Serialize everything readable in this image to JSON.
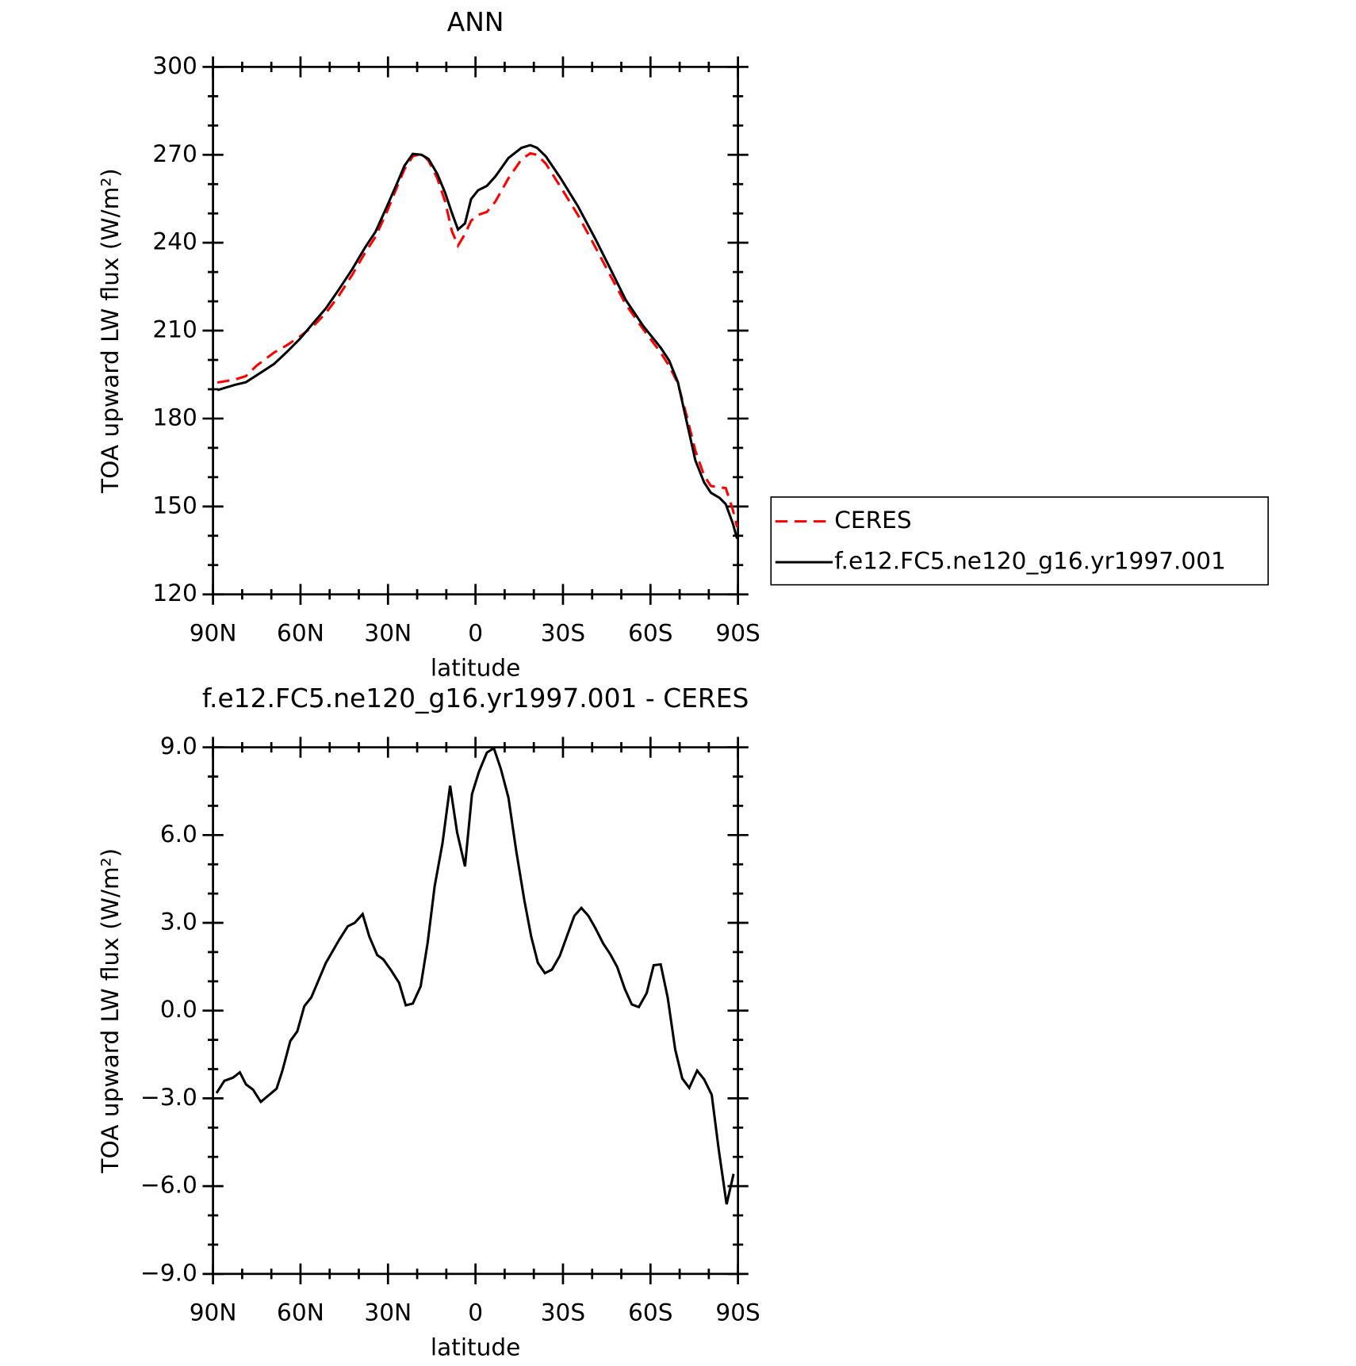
{
  "chart_data": [
    {
      "type": "line",
      "title": "ANN",
      "xlabel": "latitude",
      "ylabel": "TOA upward LW flux (W/m²)",
      "xlim": [
        90,
        -90
      ],
      "xticks": [
        {
          "value": 90,
          "label": "90N"
        },
        {
          "value": 60,
          "label": "60N"
        },
        {
          "value": 30,
          "label": "30N"
        },
        0,
        {
          "value": -30,
          "label": "30S"
        },
        {
          "value": -60,
          "label": "60S"
        },
        {
          "value": -90,
          "label": "90S"
        }
      ],
      "xminorticks": [
        80,
        70,
        50,
        40,
        20,
        10,
        -10,
        -20,
        -40,
        -50,
        -70,
        -80
      ],
      "ylim": [
        120,
        300
      ],
      "yticks": [
        120,
        150,
        180,
        210,
        240,
        270,
        300
      ],
      "yminorticks": [
        130,
        140,
        160,
        170,
        190,
        200,
        220,
        230,
        250,
        260,
        280,
        290
      ],
      "legend": "outside-right",
      "x": [
        88.5,
        82.5,
        78.7,
        75.1,
        69.1,
        64.7,
        60.2,
        55.7,
        51.3,
        46.8,
        42.3,
        37.9,
        34.3,
        30.4,
        26.5,
        24.4,
        21.5,
        18.5,
        16.1,
        13.1,
        10.4,
        8.1,
        6.0,
        3.6,
        1.5,
        -0.9,
        -3.9,
        -6.8,
        -11.3,
        -15.8,
        -18.8,
        -21.1,
        -24.1,
        -29.2,
        -35.1,
        -41.1,
        -45.6,
        -51.5,
        -57.5,
        -63.5,
        -66.4,
        -69.4,
        -72.4,
        -75.4,
        -78.4,
        -80.7,
        -83.7,
        -85.8,
        -88.2,
        -89.7
      ],
      "series": [
        {
          "name": "CERES",
          "color": "#ff0000",
          "style": "dashed",
          "values": [
            192.3,
            193.3,
            194.5,
            198,
            202.5,
            205,
            208,
            211.5,
            216,
            222,
            229,
            236.5,
            242,
            250.5,
            260,
            265,
            269.5,
            270.4,
            268,
            262,
            254,
            244,
            239,
            243,
            247.5,
            249.5,
            250.5,
            254,
            262,
            268.5,
            270.5,
            270,
            267,
            259,
            249.5,
            238.5,
            230,
            219,
            210.5,
            202.5,
            198,
            192,
            181,
            169,
            160.5,
            157,
            156.5,
            156.3,
            149,
            143
          ]
        },
        {
          "name": "f.e12.FC5.ne120_g16.yr1997.001",
          "color": "#000000",
          "style": "solid",
          "values": [
            189.7,
            191.5,
            192.4,
            194.7,
            198.6,
            202.7,
            207.2,
            212.5,
            217.6,
            224.1,
            230.9,
            238.3,
            243.7,
            252.3,
            261.2,
            266.2,
            270.3,
            270.0,
            268.6,
            263.5,
            257.0,
            250.2,
            244.5,
            246.6,
            254.9,
            257.9,
            259.4,
            262.6,
            268.9,
            272.4,
            273.3,
            272.4,
            269.5,
            262.0,
            252.5,
            241.3,
            232.4,
            220.5,
            211.6,
            204.2,
            199.8,
            192.4,
            179.0,
            165.7,
            158.2,
            154.7,
            152.9,
            150.8,
            144.3,
            139.0
          ]
        }
      ]
    },
    {
      "type": "line",
      "title": "f.e12.FC5.ne120_g16.yr1997.001 - CERES",
      "xlabel": "latitude",
      "ylabel": "TOA upward LW flux (W/m²)",
      "xlim": [
        90,
        -90
      ],
      "xticks": [
        {
          "value": 90,
          "label": "90N"
        },
        {
          "value": 60,
          "label": "60N"
        },
        {
          "value": 30,
          "label": "30N"
        },
        0,
        {
          "value": -30,
          "label": "30S"
        },
        {
          "value": -60,
          "label": "60S"
        },
        {
          "value": -90,
          "label": "90S"
        }
      ],
      "xminorticks": [
        80,
        70,
        50,
        40,
        20,
        10,
        -10,
        -20,
        -40,
        -50,
        -70,
        -80
      ],
      "ylim": [
        -9,
        9
      ],
      "yticks": [
        {
          "value": -9,
          "label": "−9.0"
        },
        {
          "value": -6,
          "label": "−6.0"
        },
        {
          "value": -3,
          "label": "−3.0"
        },
        {
          "value": 0,
          "label": "0.0"
        },
        {
          "value": 3,
          "label": "3.0"
        },
        {
          "value": 6,
          "label": "6.0"
        },
        {
          "value": 9,
          "label": "9.0"
        }
      ],
      "yminorticks": [
        -8,
        -7,
        -5,
        -4,
        -2,
        -1,
        1,
        2,
        4,
        5,
        7,
        8
      ],
      "color": "#000000",
      "x": [
        88.8,
        86.1,
        83.1,
        80.8,
        78.7,
        76.3,
        73.6,
        68.2,
        66.2,
        63.5,
        61.1,
        58.7,
        56.3,
        51.3,
        46.8,
        43.8,
        41.4,
        38.7,
        36.4,
        33.7,
        31.6,
        28.9,
        26.2,
        23.9,
        21.5,
        18.8,
        16.4,
        14.0,
        11.3,
        8.7,
        6.3,
        3.6,
        1.2,
        -1.2,
        -3.9,
        -6.3,
        -8.7,
        -11.3,
        -14.0,
        -16.7,
        -19.1,
        -21.4,
        -23.8,
        -26.2,
        -28.9,
        -31.3,
        -33.9,
        -36.3,
        -38.7,
        -41.1,
        -43.8,
        -46.2,
        -48.6,
        -51.2,
        -53.6,
        -56.0,
        -58.7,
        -61.1,
        -63.5,
        -65.9,
        -68.5,
        -70.9,
        -73.3,
        -76.0,
        -78.4,
        -81.0,
        -83.4,
        -86.1,
        -88.5
      ],
      "values": [
        -2.82,
        -2.4,
        -2.29,
        -2.11,
        -2.52,
        -2.7,
        -3.12,
        -2.67,
        -2.05,
        -1.04,
        -0.71,
        0.15,
        0.45,
        1.63,
        2.41,
        2.88,
        3.0,
        3.3,
        2.53,
        1.9,
        1.75,
        1.37,
        0.95,
        0.18,
        0.24,
        0.83,
        2.32,
        4.25,
        5.73,
        7.69,
        6.09,
        4.93,
        7.4,
        8.17,
        8.82,
        8.97,
        8.26,
        7.28,
        5.44,
        3.8,
        2.53,
        1.63,
        1.28,
        1.4,
        1.87,
        2.53,
        3.24,
        3.51,
        3.24,
        2.82,
        2.29,
        1.93,
        1.49,
        0.74,
        0.21,
        0.12,
        0.6,
        1.55,
        1.58,
        0.45,
        -1.34,
        -2.32,
        -2.64,
        -2.05,
        -2.35,
        -2.88,
        -4.75,
        -6.62,
        -5.58
      ]
    }
  ]
}
